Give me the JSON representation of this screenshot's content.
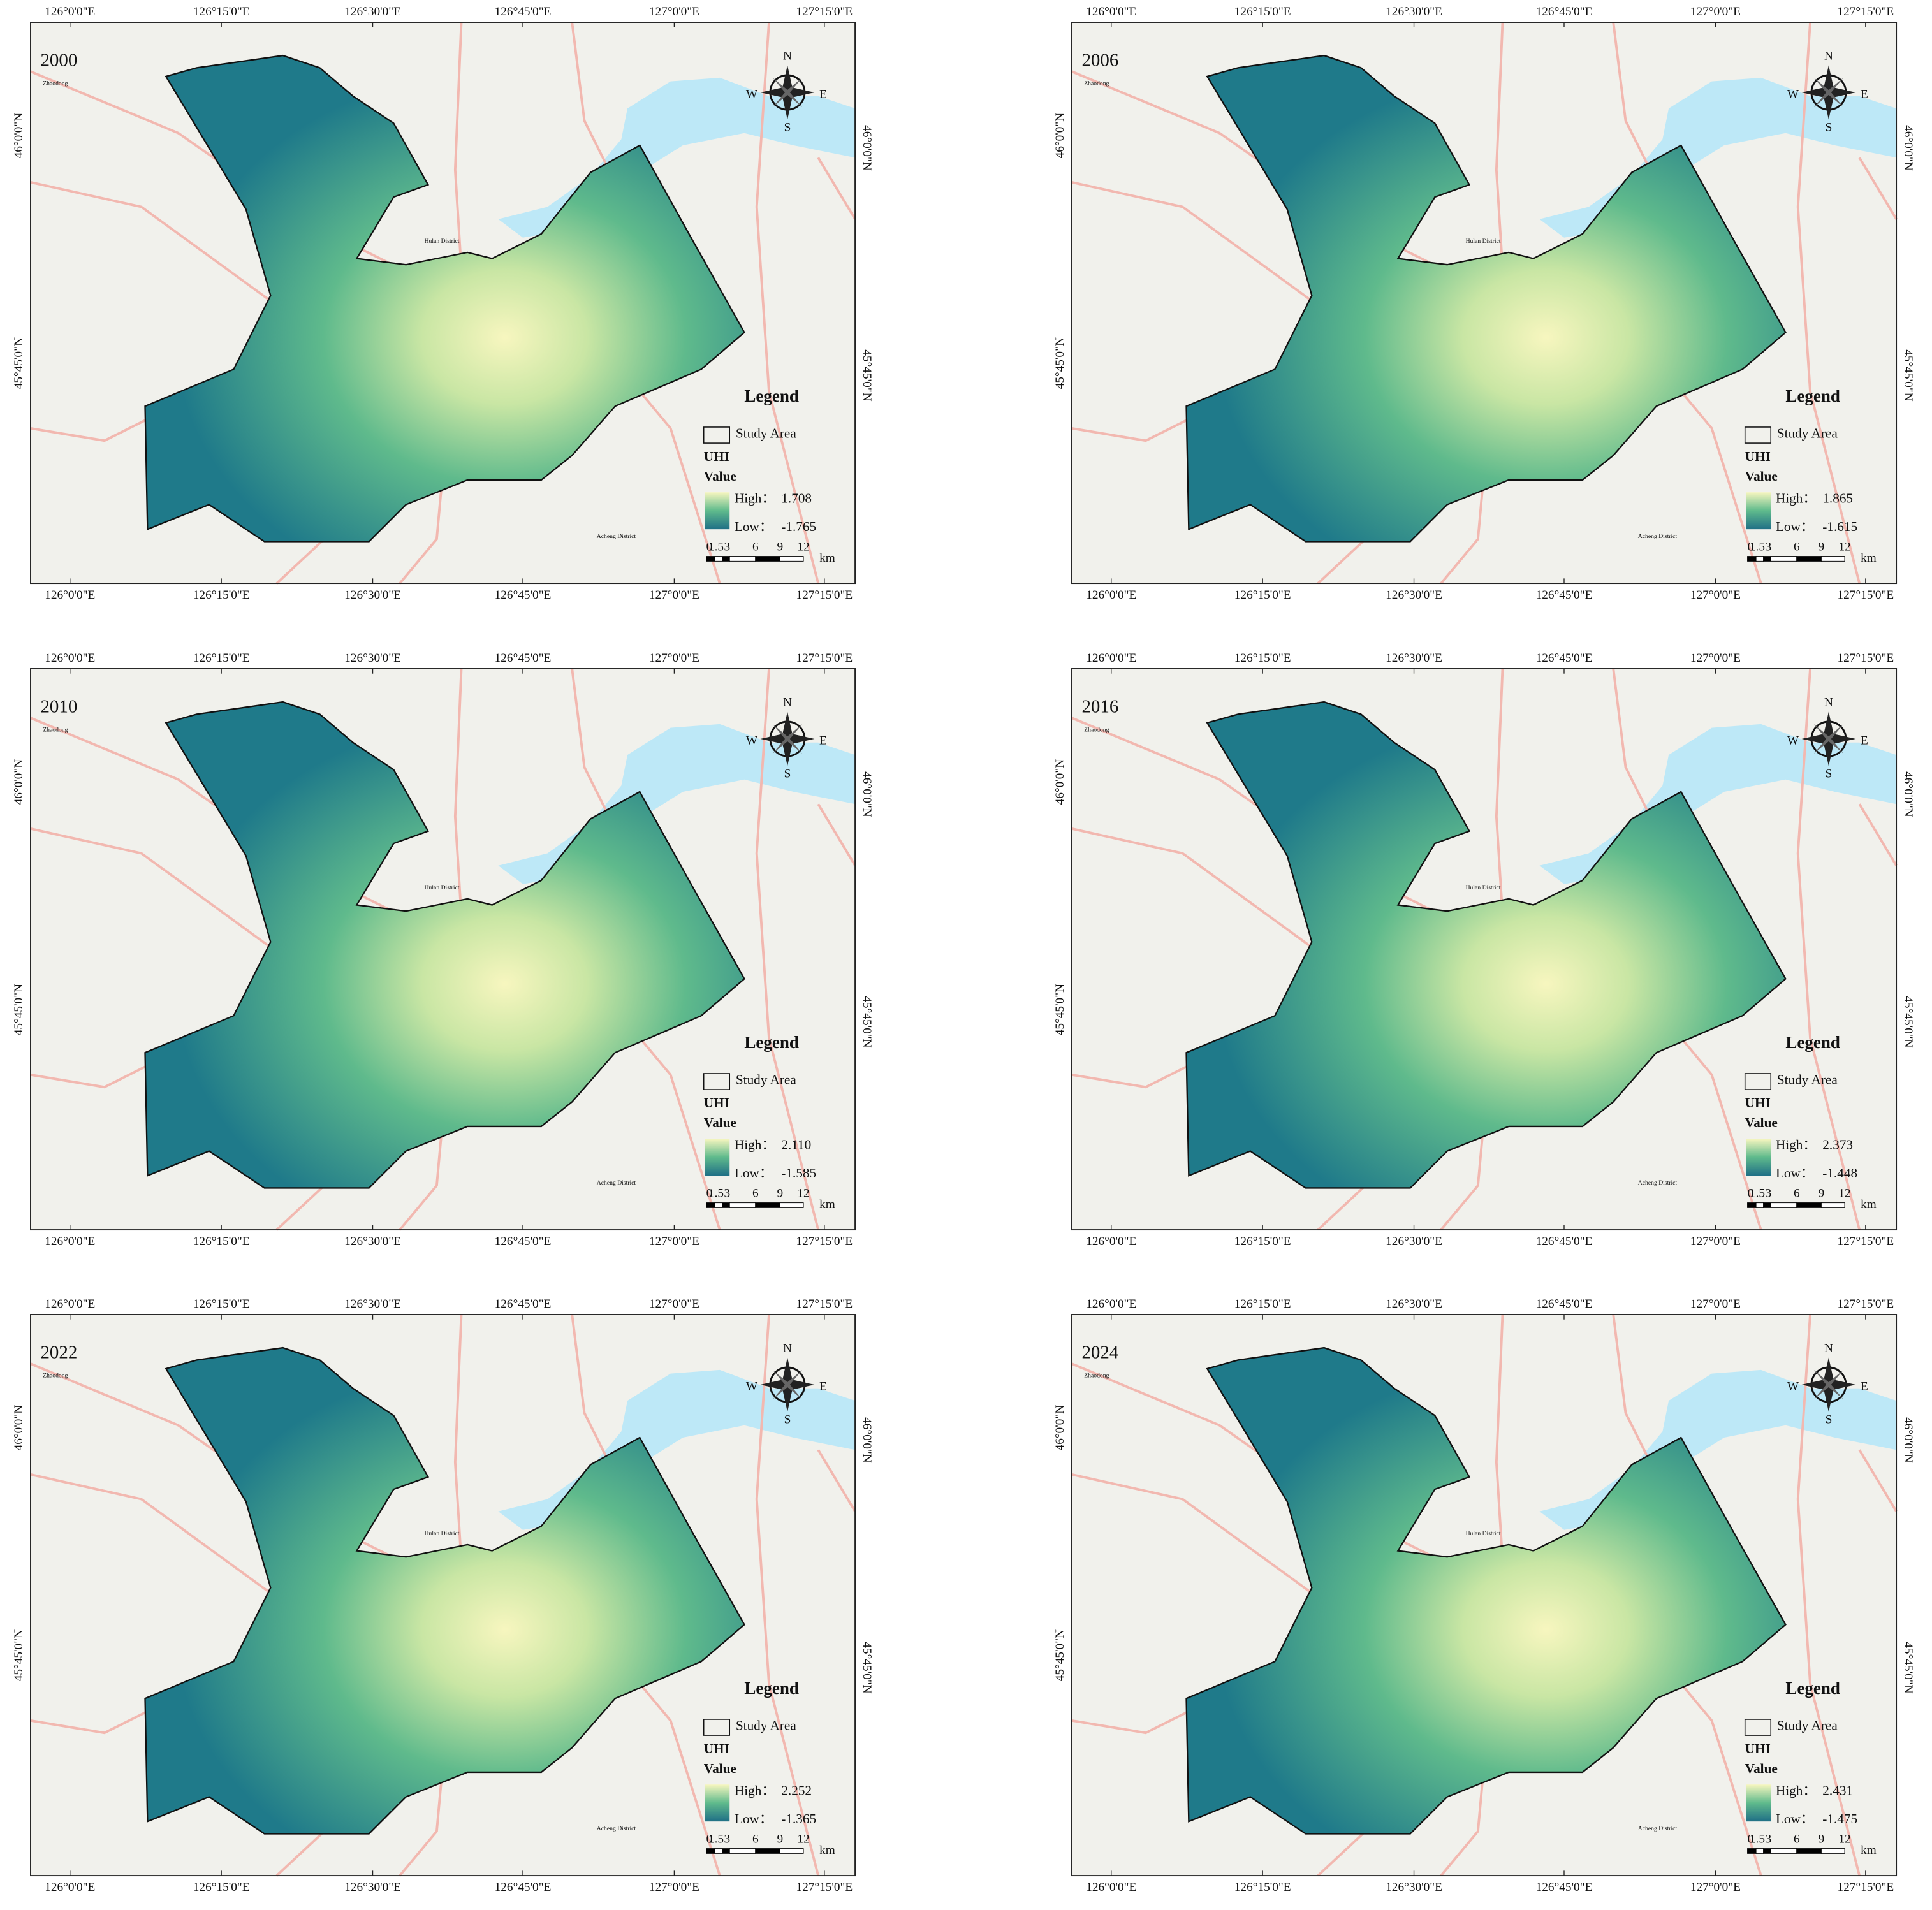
{
  "panels": [
    {
      "year": "2000",
      "high": "1.708",
      "low": "-1.765"
    },
    {
      "year": "2006",
      "high": "1.865",
      "low": "-1.615"
    },
    {
      "year": "2010",
      "high": "2.110",
      "low": "-1.585"
    },
    {
      "year": "2016",
      "high": "2.373",
      "low": "-1.448"
    },
    {
      "year": "2022",
      "high": "2.252",
      "low": "-1.365"
    },
    {
      "year": "2024",
      "high": "2.431",
      "low": "-1.475"
    }
  ],
  "longitude_labels": [
    "126°0'0\"E",
    "126°15'0\"E",
    "126°30'0\"E",
    "126°45'0\"E",
    "127°0'0\"E",
    "127°15'0\"E"
  ],
  "latitude_labels": [
    "46°0'0\"N",
    "45°45'0\"N"
  ],
  "compass": {
    "n": "N",
    "e": "E",
    "s": "S",
    "w": "W"
  },
  "legend": {
    "title": "Legend",
    "study_area": "Study Area",
    "layer": "UHI",
    "field": "Value",
    "high": "High：",
    "low": "Low：",
    "scale": [
      "0",
      "1.5",
      "3",
      "6",
      "9",
      "12"
    ],
    "unit": "km"
  },
  "places": [
    "Zhaodong",
    "Hulan District",
    "Acheng District"
  ]
}
